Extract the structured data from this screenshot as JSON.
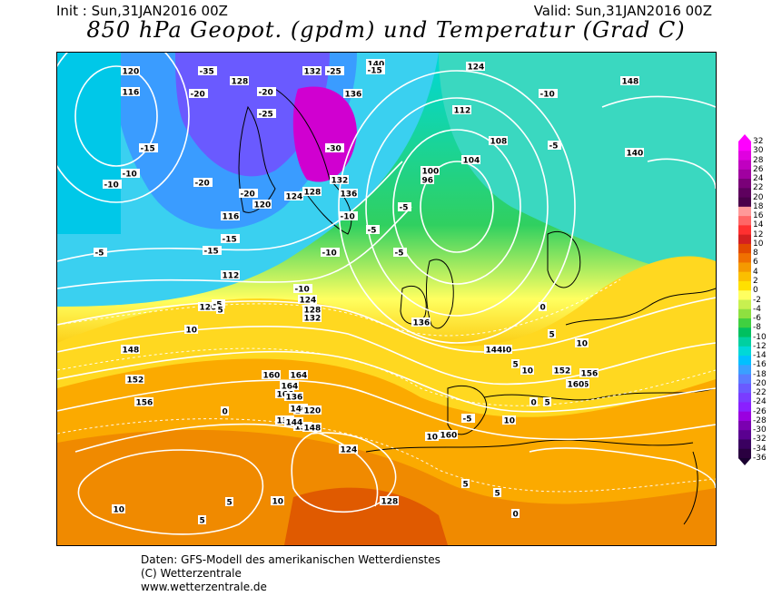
{
  "header": {
    "init": "Init : Sun,31JAN2016 00Z",
    "valid": "Valid: Sun,31JAN2016 00Z",
    "title": "850 hPa Geopot. (gpdm) und Temperatur (Grad C)"
  },
  "legend": {
    "ticks": [
      "32",
      "30",
      "28",
      "26",
      "24",
      "22",
      "20",
      "18",
      "16",
      "14",
      "12",
      "10",
      "8",
      "6",
      "4",
      "2",
      "0",
      "-2",
      "-4",
      "-6",
      "-8",
      "-10",
      "-12",
      "-14",
      "-16",
      "-18",
      "-20",
      "-22",
      "-24",
      "-26",
      "-28",
      "-30",
      "-32",
      "-34",
      "-36"
    ],
    "colors": [
      "#ff00ff",
      "#e000e0",
      "#c000c0",
      "#a000a0",
      "#7a0078",
      "#5e005e",
      "#4a004a",
      "#ff9999",
      "#ff6666",
      "#ff3030",
      "#d42020",
      "#e24a00",
      "#f07000",
      "#f59a00",
      "#fbbf00",
      "#ffe000",
      "#ffff60",
      "#c8f050",
      "#8ee040",
      "#40d040",
      "#00c060",
      "#00d0a0",
      "#00d8d8",
      "#00c0ff",
      "#3aa0ff",
      "#5a7cff",
      "#6a5aff",
      "#7a3cff",
      "#8a20ff",
      "#9a00e0",
      "#7a00b0",
      "#5a0090",
      "#3a0060",
      "#2a0040",
      "#1a0030"
    ]
  },
  "map_labels": {
    "geopotential": [
      "120",
      "116",
      "128",
      "132",
      "136",
      "140",
      "124",
      "112",
      "108",
      "104",
      "100",
      "96",
      "148",
      "140",
      "132",
      "136",
      "128",
      "124",
      "120",
      "116",
      "112",
      "124",
      "132",
      "128",
      "120",
      "136",
      "140",
      "144",
      "148",
      "152",
      "156",
      "160",
      "164",
      "166",
      "164",
      "160",
      "156",
      "152",
      "148",
      "144",
      "140",
      "136",
      "132",
      "128",
      "124",
      "120",
      "144",
      "148",
      "152",
      "156",
      "156",
      "160"
    ],
    "temperature": [
      "-35",
      "-20",
      "-25",
      "-30",
      "-15",
      "-10",
      "-5",
      "-20",
      "-15",
      "-10",
      "-5",
      "-20",
      "-15",
      "-10",
      "-5",
      "5",
      "10",
      "-10",
      "-5",
      "-15",
      "-10",
      "-20",
      "-25",
      "-5",
      "-10",
      "-5",
      "0",
      "5",
      "10",
      "5",
      "10",
      "5",
      "0",
      "5",
      "10",
      "-5",
      "0",
      "5",
      "10",
      "5",
      "10",
      "5",
      "0",
      "10",
      "5"
    ]
  },
  "footer": {
    "line1": "Daten: GFS-Modell des amerikanischen Wetterdienstes",
    "line2": "(C) Wetterzentrale",
    "line3": "www.wetterzentrale.de"
  }
}
